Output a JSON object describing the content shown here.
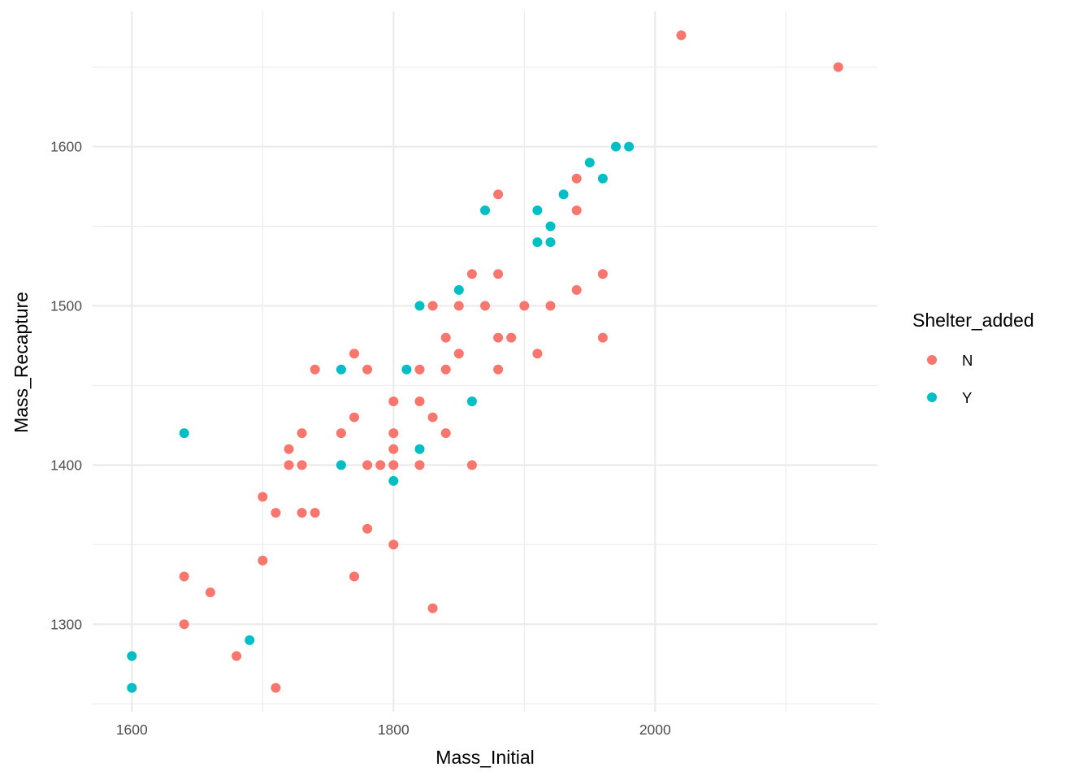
{
  "chart_data": {
    "type": "scatter",
    "xlabel": "Mass_Initial",
    "ylabel": "Mass_Recapture",
    "xlim": [
      1570,
      2170
    ],
    "ylim": [
      1245,
      1685
    ],
    "x_major_ticks": [
      1600,
      1800,
      2000
    ],
    "x_minor_ticks": [
      1700,
      1900,
      2100
    ],
    "y_major_ticks": [
      1300,
      1400,
      1500,
      1600
    ],
    "y_minor_ticks": [
      1250,
      1350,
      1450,
      1550,
      1650
    ],
    "x_tick_labels": [
      "1600",
      "1800",
      "2000"
    ],
    "y_tick_labels": [
      "1300",
      "1400",
      "1500",
      "1600"
    ],
    "grid": true,
    "legend": {
      "title": "Shelter_added",
      "position": "right",
      "entries": [
        {
          "label": "N",
          "color": "#F8766D"
        },
        {
          "label": "Y",
          "color": "#00BFC4"
        }
      ]
    },
    "series": [
      {
        "name": "N",
        "color": "#F8766D",
        "points": [
          [
            2020,
            1670
          ],
          [
            2140,
            1650
          ],
          [
            1880,
            1570
          ],
          [
            1940,
            1580
          ],
          [
            1940,
            1560
          ],
          [
            1860,
            1520
          ],
          [
            1880,
            1520
          ],
          [
            1960,
            1520
          ],
          [
            1830,
            1500
          ],
          [
            1850,
            1500
          ],
          [
            1870,
            1500
          ],
          [
            1900,
            1500
          ],
          [
            1920,
            1500
          ],
          [
            1940,
            1510
          ],
          [
            1840,
            1480
          ],
          [
            1880,
            1480
          ],
          [
            1890,
            1480
          ],
          [
            1960,
            1480
          ],
          [
            1850,
            1470
          ],
          [
            1910,
            1470
          ],
          [
            1770,
            1470
          ],
          [
            1740,
            1460
          ],
          [
            1780,
            1460
          ],
          [
            1820,
            1460
          ],
          [
            1840,
            1460
          ],
          [
            1880,
            1460
          ],
          [
            1800,
            1440
          ],
          [
            1820,
            1440
          ],
          [
            1770,
            1430
          ],
          [
            1830,
            1430
          ],
          [
            1730,
            1420
          ],
          [
            1760,
            1420
          ],
          [
            1800,
            1420
          ],
          [
            1840,
            1420
          ],
          [
            1720,
            1410
          ],
          [
            1800,
            1410
          ],
          [
            1720,
            1400
          ],
          [
            1730,
            1400
          ],
          [
            1780,
            1400
          ],
          [
            1790,
            1400
          ],
          [
            1800,
            1400
          ],
          [
            1820,
            1400
          ],
          [
            1860,
            1400
          ],
          [
            1700,
            1380
          ],
          [
            1710,
            1370
          ],
          [
            1730,
            1370
          ],
          [
            1740,
            1370
          ],
          [
            1780,
            1360
          ],
          [
            1800,
            1350
          ],
          [
            1700,
            1340
          ],
          [
            1640,
            1330
          ],
          [
            1770,
            1330
          ],
          [
            1660,
            1320
          ],
          [
            1830,
            1310
          ],
          [
            1640,
            1300
          ],
          [
            1680,
            1280
          ],
          [
            1710,
            1260
          ]
        ]
      },
      {
        "name": "Y",
        "color": "#00BFC4",
        "points": [
          [
            1970,
            1600
          ],
          [
            1980,
            1600
          ],
          [
            1950,
            1590
          ],
          [
            1960,
            1580
          ],
          [
            1930,
            1570
          ],
          [
            1870,
            1560
          ],
          [
            1910,
            1560
          ],
          [
            1920,
            1550
          ],
          [
            1910,
            1540
          ],
          [
            1920,
            1540
          ],
          [
            1850,
            1510
          ],
          [
            1820,
            1500
          ],
          [
            1760,
            1460
          ],
          [
            1810,
            1460
          ],
          [
            1860,
            1440
          ],
          [
            1640,
            1420
          ],
          [
            1820,
            1410
          ],
          [
            1760,
            1400
          ],
          [
            1800,
            1390
          ],
          [
            1690,
            1290
          ],
          [
            1600,
            1280
          ],
          [
            1600,
            1260
          ]
        ]
      }
    ]
  }
}
